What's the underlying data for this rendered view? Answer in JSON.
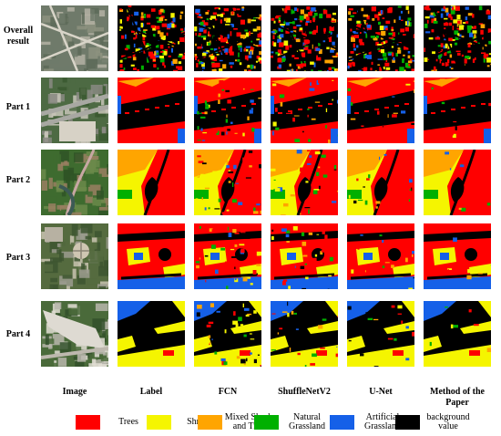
{
  "rows": [
    "Overall result",
    "Part 1",
    "Part 2",
    "Part 3",
    "Part 4"
  ],
  "columns": [
    "Image",
    "Label",
    "FCN",
    "ShuffleNetV2",
    "U-Net",
    "Method of the Paper"
  ],
  "legend": [
    {
      "label": "Trees",
      "color": "#ff0000"
    },
    {
      "label": "Shrubs",
      "color": "#f5f500"
    },
    {
      "label": "Mixed Shrubs and Trees",
      "color": "#ffa500"
    },
    {
      "label": "Natural Grassland",
      "color": "#00b000"
    },
    {
      "label": "Artificial Grassland",
      "color": "#1560e8"
    },
    {
      "label": "background value",
      "color": "#000000"
    }
  ]
}
